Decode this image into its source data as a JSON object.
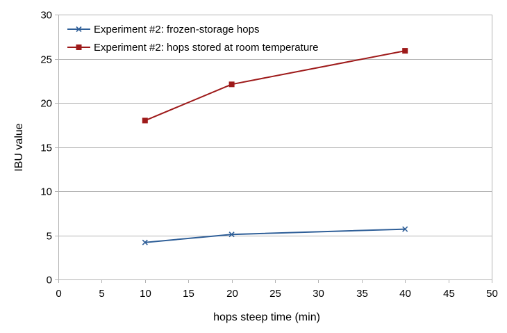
{
  "chart_data": {
    "type": "line",
    "xlabel": "hops steep time (min)",
    "ylabel": "IBU value",
    "xlim": [
      0,
      50
    ],
    "ylim": [
      0,
      30
    ],
    "xticks": [
      0,
      5,
      10,
      15,
      20,
      25,
      30,
      35,
      40,
      45,
      50
    ],
    "yticks": [
      0,
      5,
      10,
      15,
      20,
      25,
      30
    ],
    "grid": "horizontal",
    "legend_position": "top-left",
    "series": [
      {
        "name": "Experiment #2: frozen-storage hops",
        "color": "#2f5f98",
        "marker": "x",
        "x": [
          10,
          20,
          40
        ],
        "y": [
          4.2,
          5.1,
          5.7
        ]
      },
      {
        "name": "Experiment #2: hops stored at room temperature",
        "color": "#9e1a1a",
        "marker": "square",
        "x": [
          10,
          20,
          40
        ],
        "y": [
          18.0,
          22.1,
          25.9
        ]
      }
    ]
  }
}
